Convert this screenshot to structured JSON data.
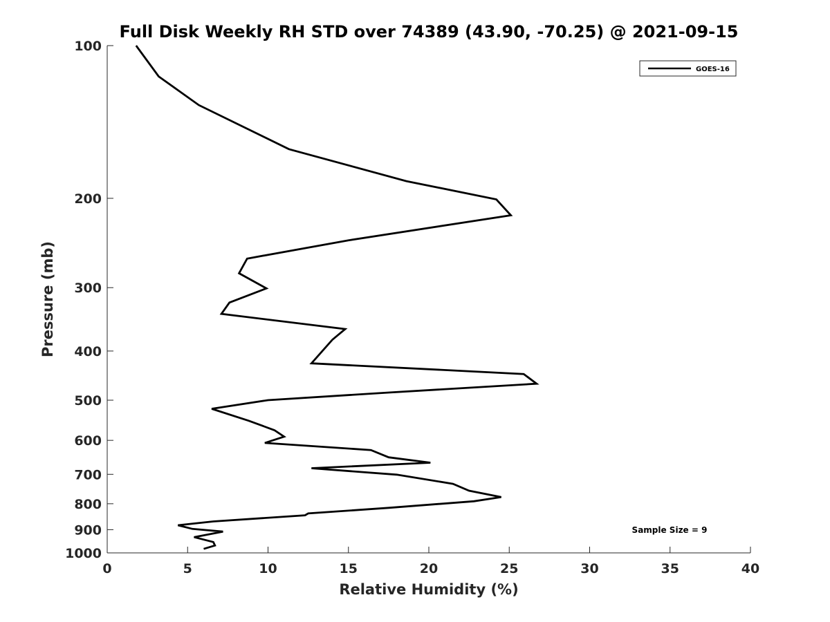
{
  "chart_data": {
    "type": "line",
    "title": "Full Disk Weekly RH STD over 74389 (43.90, -70.25) @ 2021-09-15",
    "xlabel": "Relative Humidity (%)",
    "ylabel": "Pressure (mb)",
    "xlim": [
      0,
      40
    ],
    "ylim": [
      100,
      1000
    ],
    "yscale": "log",
    "y_reversed": true,
    "grid": false,
    "xticks": [
      0,
      5,
      10,
      15,
      20,
      25,
      30,
      35,
      40
    ],
    "xtick_labels": [
      "0",
      "5",
      "10",
      "15",
      "20",
      "25",
      "30",
      "35",
      "40"
    ],
    "yticks": [
      100,
      200,
      300,
      400,
      500,
      600,
      700,
      800,
      900,
      1000
    ],
    "ytick_labels": [
      "100",
      "200",
      "300",
      "400",
      "500",
      "600",
      "700",
      "800",
      "900",
      "1000"
    ],
    "legend_position": "top-right",
    "annotation": "Sample Size = 9",
    "line_color": "#000000",
    "series": [
      {
        "name": "GOES-16",
        "x": [
          1.8,
          3.2,
          5.7,
          11.3,
          18.6,
          24.2,
          25.1,
          15.0,
          8.7,
          8.2,
          9.9,
          7.6,
          7.1,
          14.8,
          14.0,
          12.7,
          25.9,
          26.7,
          17.5,
          10.0,
          6.5,
          8.8,
          10.4,
          11.0,
          9.8,
          16.4,
          17.5,
          20.1,
          12.7,
          18.0,
          21.5,
          22.5,
          24.5,
          22.8,
          17.5,
          12.5,
          12.3,
          6.6,
          4.4,
          5.3,
          7.2,
          5.4,
          6.6,
          6.7,
          6.0
        ],
        "y": [
          100,
          115,
          131,
          160,
          185,
          201,
          216,
          242,
          263,
          281,
          301,
          321,
          338,
          362,
          380,
          423,
          444,
          464,
          483,
          500,
          520,
          549,
          573,
          590,
          607,
          627,
          648,
          664,
          681,
          701,
          731,
          754,
          776,
          791,
          815,
          836,
          843,
          867,
          882,
          897,
          908,
          931,
          952,
          967,
          982
        ]
      }
    ]
  }
}
